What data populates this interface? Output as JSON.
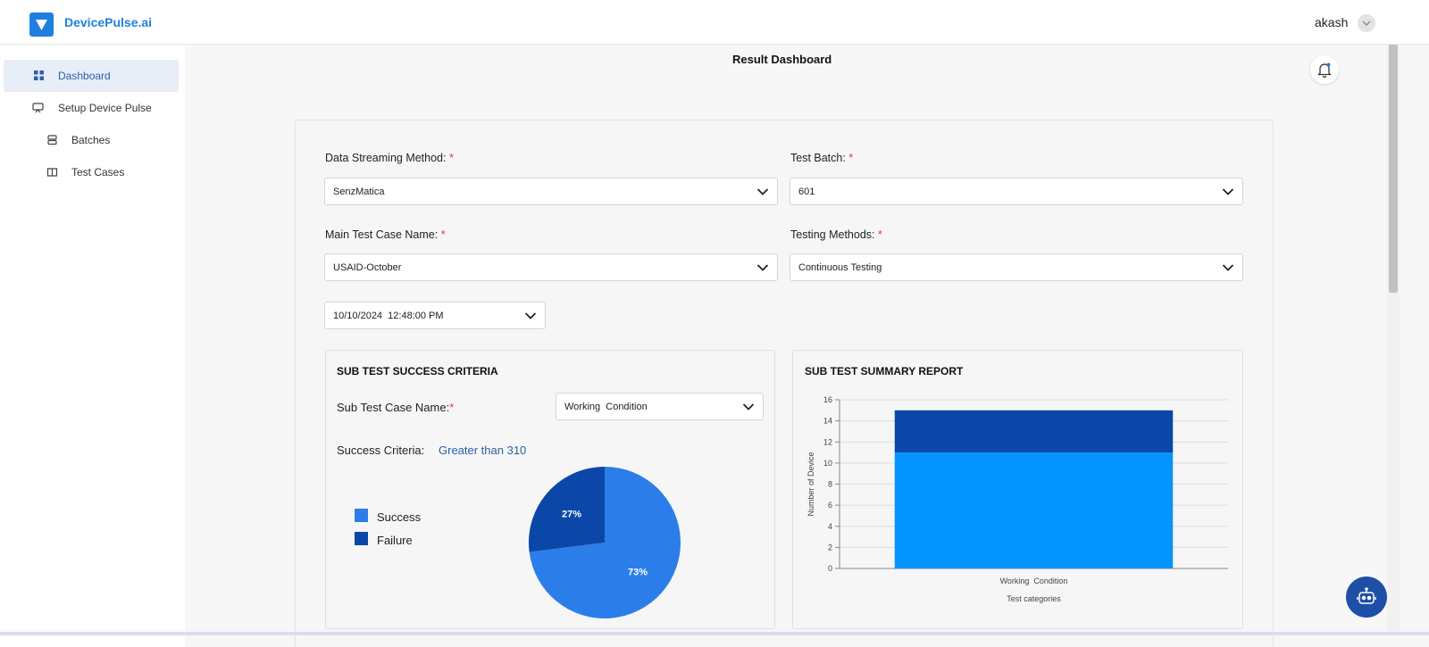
{
  "header": {
    "brand": "DevicePulse.ai",
    "user": "akash"
  },
  "sidebar": {
    "items": [
      {
        "label": "Dashboard",
        "icon": "grid-icon",
        "active": true
      },
      {
        "label": "Setup Device Pulse",
        "icon": "monitor-icon",
        "active": false
      },
      {
        "label": "Batches",
        "icon": "stack-icon",
        "active": false
      },
      {
        "label": "Test Cases",
        "icon": "book-icon",
        "active": false
      }
    ]
  },
  "main": {
    "title": "Result Dashboard",
    "form": {
      "streaming_label": "Data Streaming Method:",
      "streaming_value": "SenzMatica",
      "batch_label": "Test Batch:",
      "batch_value": "601",
      "main_case_label": "Main Test Case Name:",
      "main_case_value": "USAID-October",
      "methods_label": "Testing Methods:",
      "methods_value": "Continuous Testing",
      "datetime_value": "10/10/2024  12:48:00 PM",
      "required_mark": "*"
    },
    "success_panel": {
      "title": "SUB TEST SUCCESS CRITERIA",
      "sub_case_label": "Sub Test Case Name:",
      "sub_case_value": "Working  Condition",
      "criteria_label": "Success Criteria:",
      "criteria_value": "Greater than 310",
      "legend": [
        {
          "label": "Success",
          "color": "#2b7de9"
        },
        {
          "label": "Failure",
          "color": "#0a47a8"
        }
      ]
    },
    "summary_panel": {
      "title": "SUB TEST SUMMARY REPORT"
    }
  },
  "chart_data": [
    {
      "type": "pie",
      "slices": [
        {
          "label": "Success",
          "value": 73,
          "display": "73%",
          "color": "#2b7de9"
        },
        {
          "label": "Failure",
          "value": 27,
          "display": "27%",
          "color": "#0a47a8"
        }
      ]
    },
    {
      "type": "bar",
      "stacked": true,
      "categories": [
        "Working  Condition"
      ],
      "series": [
        {
          "values": [
            11
          ],
          "color": "#0394ff"
        },
        {
          "values": [
            4
          ],
          "color": "#0a47a8"
        }
      ],
      "ylim": [
        0,
        16
      ],
      "yticks": [
        0,
        2,
        4,
        6,
        8,
        10,
        12,
        14,
        16
      ],
      "xlabel": "Test categories",
      "ylabel": "Number of Device",
      "grid": true
    }
  ]
}
